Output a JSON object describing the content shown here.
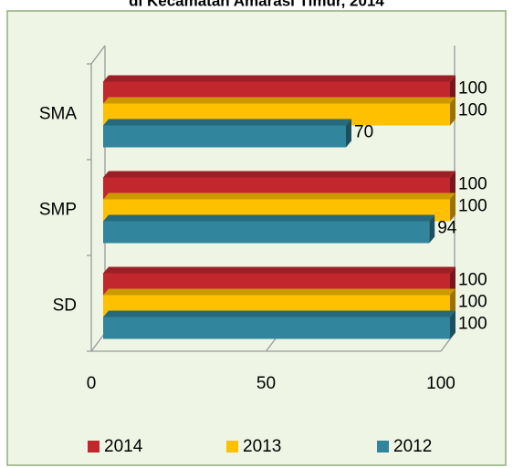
{
  "chart_data": {
    "type": "bar3d",
    "orientation": "horizontal",
    "title": "di Kecamatan Amarasi Timur, 2014",
    "categories": [
      "SMA",
      "SMP",
      "SD"
    ],
    "series": [
      {
        "name": "2014",
        "color": "#c3272e",
        "values": [
          100,
          100,
          100
        ]
      },
      {
        "name": "2013",
        "color": "#ffc000",
        "values": [
          100,
          100,
          100
        ]
      },
      {
        "name": "2012",
        "color": "#31859c",
        "values": [
          70,
          94,
          100
        ]
      }
    ],
    "xlim": [
      0,
      100
    ],
    "xticks": [
      0,
      50,
      100
    ],
    "legend": "bottom"
  }
}
